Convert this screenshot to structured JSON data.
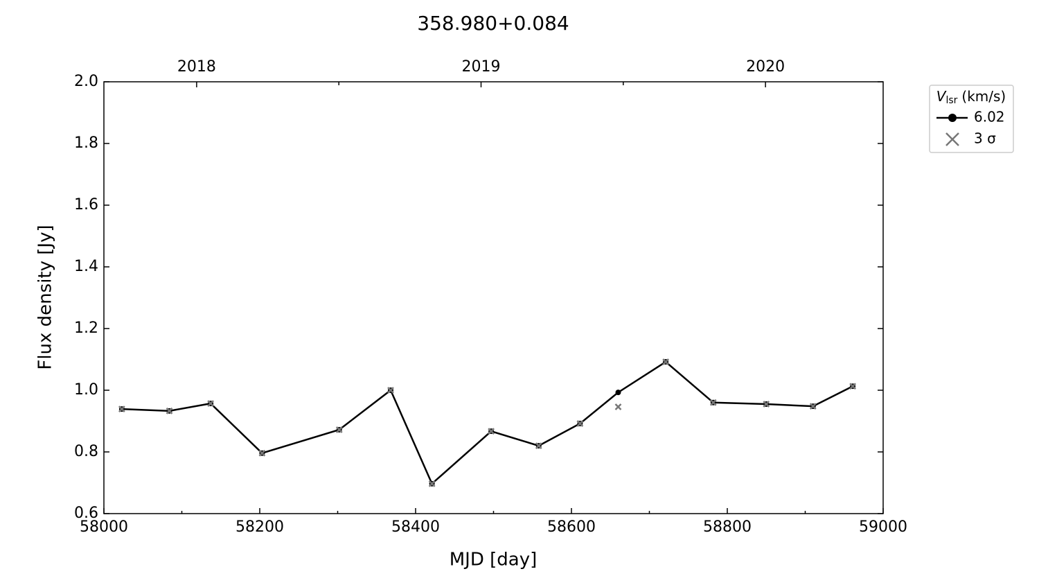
{
  "chart_data": {
    "type": "line",
    "title": "358.980+0.084",
    "xlabel": "MJD [day]",
    "ylabel": "Flux density [Jy]",
    "x": [
      58023,
      58084,
      58137,
      58203,
      58302,
      58368,
      58421,
      58497,
      58558,
      58611,
      58660,
      58721,
      58782,
      58850,
      58910,
      58961
    ],
    "series": [
      {
        "name": "6.02",
        "color": "#000000",
        "marker": "circle",
        "values": [
          0.939,
          0.933,
          0.957,
          0.796,
          0.872,
          1.0,
          0.697,
          0.867,
          0.82,
          0.892,
          0.993,
          1.092,
          0.96,
          0.955,
          0.948,
          1.013
        ]
      },
      {
        "name": "3 σ",
        "color": "#777777",
        "marker": "cross",
        "values": [
          0.939,
          0.933,
          0.957,
          0.796,
          0.872,
          1.0,
          0.697,
          0.867,
          0.82,
          0.892,
          0.946,
          1.092,
          0.96,
          0.955,
          0.948,
          1.013
        ]
      }
    ],
    "legend_title": {
      "symbol": "V",
      "subscript": "lsr",
      "unit": "(km/s)"
    },
    "legend_position": "outside-upper-right",
    "xlim": [
      58000,
      59000
    ],
    "xticks": [
      58000,
      58200,
      58400,
      58600,
      58800,
      59000
    ],
    "x2ticks": [
      {
        "value": 58119,
        "label": "2018"
      },
      {
        "value": 58484,
        "label": "2019"
      },
      {
        "value": 58849,
        "label": "2020"
      }
    ],
    "ylim": [
      0.6,
      2.0
    ],
    "yticks": [
      {
        "value": 0.6,
        "label": "0.6"
      },
      {
        "value": 0.8,
        "label": "0.8"
      },
      {
        "value": 1.0,
        "label": "1.0"
      },
      {
        "value": 1.2,
        "label": "1.2"
      },
      {
        "value": 1.4,
        "label": "1.4"
      },
      {
        "value": 1.6,
        "label": "1.6"
      },
      {
        "value": 1.8,
        "label": "1.8"
      },
      {
        "value": 2.0,
        "label": "2.0"
      }
    ],
    "grid": false
  }
}
